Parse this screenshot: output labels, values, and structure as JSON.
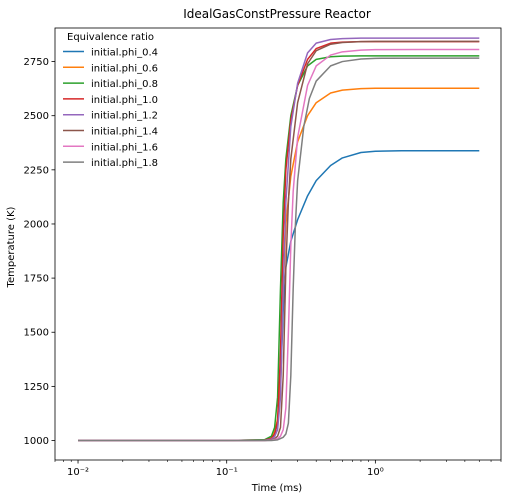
{
  "chart_data": {
    "type": "line",
    "title": "IdealGasConstPressure Reactor",
    "xlabel": "Time (ms)",
    "ylabel": "Temperature (K)",
    "xscale": "log",
    "xlim": [
      0.007,
      7.0
    ],
    "ylim": [
      910,
      2905
    ],
    "xticks": [
      0.01,
      0.1,
      1
    ],
    "xtick_labels": [
      "10⁻²",
      "10⁻¹",
      "10⁰"
    ],
    "yticks": [
      1000,
      1250,
      1500,
      1750,
      2000,
      2250,
      2500,
      2750
    ],
    "ytick_labels": [
      "1000",
      "1250",
      "1500",
      "1750",
      "2000",
      "2250",
      "2500",
      "2750"
    ],
    "grid": false,
    "legend": {
      "title": "Equivalence ratio",
      "placement": "top-left"
    },
    "series": [
      {
        "name": "initial.phi_0.4",
        "color": "#1f77b4",
        "x": [
          0.01,
          0.1,
          0.18,
          0.2,
          0.21,
          0.22,
          0.23,
          0.24,
          0.25,
          0.27,
          0.3,
          0.35,
          0.4,
          0.5,
          0.6,
          0.8,
          1.0,
          1.5,
          2.0,
          5.0
        ],
        "y": [
          1000,
          1000,
          1003,
          1012,
          1030,
          1080,
          1250,
          1600,
          1800,
          1920,
          2020,
          2130,
          2200,
          2270,
          2305,
          2330,
          2336,
          2338,
          2338,
          2338
        ]
      },
      {
        "name": "initial.phi_0.6",
        "color": "#ff7f0e",
        "x": [
          0.01,
          0.1,
          0.18,
          0.2,
          0.21,
          0.22,
          0.23,
          0.24,
          0.25,
          0.27,
          0.3,
          0.35,
          0.4,
          0.5,
          0.6,
          0.8,
          1.0,
          1.5,
          2.0,
          5.0
        ],
        "y": [
          1000,
          1000,
          1003,
          1015,
          1040,
          1100,
          1300,
          1700,
          2000,
          2220,
          2380,
          2500,
          2560,
          2605,
          2618,
          2625,
          2627,
          2627,
          2627,
          2627
        ]
      },
      {
        "name": "initial.phi_0.8",
        "color": "#2ca02c",
        "x": [
          0.01,
          0.1,
          0.18,
          0.2,
          0.21,
          0.22,
          0.23,
          0.24,
          0.25,
          0.27,
          0.3,
          0.35,
          0.4,
          0.5,
          0.6,
          0.8,
          1.0,
          1.5,
          2.0,
          5.0
        ],
        "y": [
          1000,
          1000,
          1004,
          1020,
          1060,
          1200,
          1700,
          2100,
          2300,
          2500,
          2640,
          2730,
          2760,
          2772,
          2775,
          2776,
          2776,
          2776,
          2776,
          2776
        ]
      },
      {
        "name": "initial.phi_1.0",
        "color": "#d62728",
        "x": [
          0.01,
          0.1,
          0.18,
          0.2,
          0.21,
          0.22,
          0.23,
          0.24,
          0.25,
          0.27,
          0.3,
          0.35,
          0.4,
          0.5,
          0.6,
          0.8,
          1.0,
          1.5,
          2.0,
          5.0
        ],
        "y": [
          1000,
          1000,
          1002,
          1010,
          1030,
          1090,
          1400,
          1950,
          2250,
          2480,
          2640,
          2760,
          2810,
          2835,
          2840,
          2842,
          2842,
          2842,
          2842,
          2842
        ]
      },
      {
        "name": "initial.phi_1.2",
        "color": "#9467bd",
        "x": [
          0.01,
          0.1,
          0.18,
          0.2,
          0.21,
          0.22,
          0.23,
          0.24,
          0.25,
          0.27,
          0.3,
          0.35,
          0.4,
          0.5,
          0.6,
          0.8,
          1.0,
          1.5,
          2.0,
          5.0
        ],
        "y": [
          1000,
          1000,
          1001,
          1006,
          1018,
          1050,
          1200,
          1700,
          2100,
          2450,
          2650,
          2790,
          2835,
          2852,
          2856,
          2858,
          2858,
          2858,
          2858,
          2858
        ]
      },
      {
        "name": "initial.phi_1.4",
        "color": "#8c564b",
        "x": [
          0.01,
          0.1,
          0.18,
          0.2,
          0.21,
          0.22,
          0.23,
          0.24,
          0.25,
          0.26,
          0.27,
          0.3,
          0.35,
          0.4,
          0.5,
          0.6,
          0.8,
          1.0,
          2.0,
          5.0
        ],
        "y": [
          1000,
          1000,
          1000,
          1003,
          1008,
          1020,
          1060,
          1300,
          1800,
          2100,
          2300,
          2560,
          2740,
          2800,
          2830,
          2838,
          2842,
          2843,
          2843,
          2843
        ]
      },
      {
        "name": "initial.phi_1.6",
        "color": "#e377c2",
        "x": [
          0.01,
          0.1,
          0.18,
          0.2,
          0.22,
          0.23,
          0.24,
          0.25,
          0.26,
          0.27,
          0.28,
          0.3,
          0.35,
          0.4,
          0.5,
          0.6,
          0.8,
          1.0,
          2.0,
          5.0
        ],
        "y": [
          1000,
          1000,
          1000,
          1001,
          1008,
          1020,
          1050,
          1150,
          1500,
          1900,
          2150,
          2400,
          2640,
          2730,
          2780,
          2795,
          2803,
          2805,
          2806,
          2806
        ]
      },
      {
        "name": "initial.phi_1.8",
        "color": "#7f7f7f",
        "x": [
          0.01,
          0.1,
          0.18,
          0.2,
          0.22,
          0.24,
          0.25,
          0.26,
          0.27,
          0.28,
          0.29,
          0.3,
          0.33,
          0.36,
          0.4,
          0.5,
          0.6,
          0.8,
          1.0,
          5.0
        ],
        "y": [
          1000,
          1000,
          1000,
          1000,
          1003,
          1015,
          1030,
          1080,
          1300,
          1700,
          2000,
          2200,
          2450,
          2580,
          2660,
          2730,
          2750,
          2762,
          2765,
          2766
        ]
      }
    ]
  }
}
